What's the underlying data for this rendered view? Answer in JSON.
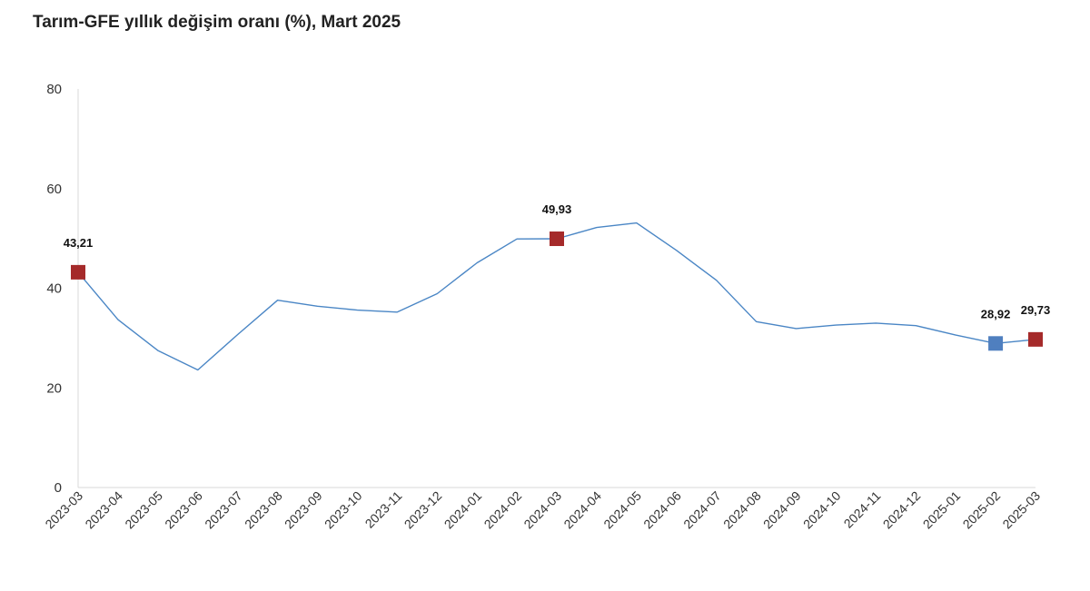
{
  "chart_data": {
    "type": "line",
    "title": "Tarım-GFE yıllık değişim oranı (%), Mart 2025",
    "xlabel": "",
    "ylabel": "",
    "ylim": [
      0,
      80
    ],
    "yticks": [
      "0",
      "20",
      "40",
      "60",
      "80"
    ],
    "grid": false,
    "categories": [
      "2023-03",
      "2023-04",
      "2023-05",
      "2023-06",
      "2023-07",
      "2023-08",
      "2023-09",
      "2023-10",
      "2023-11",
      "2023-12",
      "2024-01",
      "2024-02",
      "2024-03",
      "2024-04",
      "2024-05",
      "2024-06",
      "2024-07",
      "2024-08",
      "2024-09",
      "2024-10",
      "2024-11",
      "2024-12",
      "2025-01",
      "2025-02",
      "2025-03"
    ],
    "series": [
      {
        "values": [
          43.21,
          33.7,
          27.5,
          23.6,
          30.7,
          37.6,
          36.4,
          35.6,
          35.2,
          38.9,
          45.1,
          49.9,
          49.93,
          52.2,
          53.1,
          47.6,
          41.6,
          33.3,
          31.9,
          32.6,
          33.0,
          32.5,
          30.6,
          28.92,
          29.73
        ],
        "color": "#4a86c5"
      }
    ],
    "markers": [
      {
        "index": 0,
        "label": "43,21",
        "color": "#a52a2a"
      },
      {
        "index": 12,
        "label": "49,93",
        "color": "#a52a2a"
      },
      {
        "index": 23,
        "label": "28,92",
        "color": "#4f7fbf"
      },
      {
        "index": 24,
        "label": "29,73",
        "color": "#a52a2a"
      }
    ]
  }
}
